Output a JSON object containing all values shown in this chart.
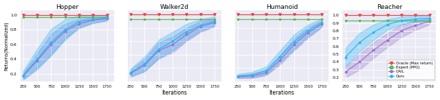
{
  "titles": [
    "Hopper",
    "Walker2d",
    "Humanoid",
    "Reacher"
  ],
  "xlabel": "Iterations",
  "ylabel": "Returns(Normalized)",
  "x": [
    250,
    500,
    750,
    1000,
    1250,
    1500,
    1750
  ],
  "oracle_y": [
    1.0,
    1.0,
    1.0,
    1.0,
    1.0,
    1.0,
    1.0
  ],
  "expert_hopper": [
    0.97,
    0.97,
    0.97,
    0.97,
    0.97,
    0.97,
    0.97
  ],
  "expert_walker": [
    0.93,
    0.93,
    0.93,
    0.93,
    0.93,
    0.93,
    0.93
  ],
  "expert_humanoid": [
    0.93,
    0.93,
    0.93,
    0.93,
    0.93,
    0.93,
    0.93
  ],
  "expert_reacher": [
    0.93,
    0.93,
    0.93,
    0.93,
    0.93,
    0.93,
    0.93
  ],
  "gail_hopper_mean": [
    0.17,
    0.38,
    0.6,
    0.78,
    0.88,
    0.93,
    0.95
  ],
  "gail_hopper_std": [
    0.04,
    0.1,
    0.14,
    0.1,
    0.06,
    0.04,
    0.03
  ],
  "gail_walker_mean": [
    0.12,
    0.24,
    0.46,
    0.55,
    0.7,
    0.82,
    0.88
  ],
  "gail_walker_std": [
    0.05,
    0.09,
    0.12,
    0.12,
    0.1,
    0.08,
    0.06
  ],
  "gail_humanoid_mean": [
    0.07,
    0.08,
    0.13,
    0.32,
    0.55,
    0.73,
    0.86
  ],
  "gail_humanoid_std": [
    0.02,
    0.03,
    0.04,
    0.07,
    0.09,
    0.08,
    0.05
  ],
  "gail_reacher_mean": [
    0.27,
    0.4,
    0.55,
    0.68,
    0.8,
    0.87,
    0.92
  ],
  "gail_reacher_std": [
    0.07,
    0.1,
    0.1,
    0.09,
    0.08,
    0.06,
    0.04
  ],
  "ours_hopper_mean": [
    0.18,
    0.4,
    0.63,
    0.8,
    0.91,
    0.94,
    0.96
  ],
  "ours_hopper_std": [
    0.06,
    0.14,
    0.18,
    0.14,
    0.08,
    0.05,
    0.03
  ],
  "ours_walker_mean": [
    0.13,
    0.26,
    0.48,
    0.6,
    0.74,
    0.84,
    0.9
  ],
  "ours_walker_std": [
    0.06,
    0.11,
    0.14,
    0.14,
    0.12,
    0.09,
    0.07
  ],
  "ours_humanoid_mean": [
    0.08,
    0.1,
    0.16,
    0.37,
    0.59,
    0.76,
    0.88
  ],
  "ours_humanoid_std": [
    0.03,
    0.04,
    0.06,
    0.09,
    0.11,
    0.09,
    0.06
  ],
  "ours_reacher_mean": [
    0.46,
    0.65,
    0.78,
    0.88,
    0.93,
    0.95,
    0.96
  ],
  "ours_reacher_std": [
    0.12,
    0.12,
    0.1,
    0.07,
    0.05,
    0.04,
    0.03
  ],
  "oracle_color": "#e8474c",
  "expert_color": "#5cb85c",
  "gail_color": "#9575cd",
  "ours_color": "#29b6f6",
  "bg_color": "#eaeaf4",
  "grid_color": "#ffffff",
  "legend_labels": [
    "Oracle (Max return)",
    "Expert (PPO)",
    "GAIL",
    "Ours"
  ],
  "ylim_hopper": [
    0.1,
    1.06
  ],
  "ylim_walker": [
    0.0,
    1.06
  ],
  "ylim_humanoid": [
    0.0,
    1.06
  ],
  "ylim_reacher": [
    0.15,
    1.06
  ],
  "yticks_hopper": [
    0.2,
    0.4,
    0.6,
    0.8,
    1.0
  ],
  "yticks_walker": [
    0.2,
    0.4,
    0.6,
    0.8,
    1.0
  ],
  "yticks_humanoid": [
    0.2,
    0.4,
    0.6,
    0.8,
    1.0
  ],
  "yticks_reacher": [
    0.2,
    0.3,
    0.4,
    0.5,
    0.6,
    0.7,
    0.8,
    0.9,
    1.0
  ],
  "fig_width": 6.4,
  "fig_height": 1.46
}
